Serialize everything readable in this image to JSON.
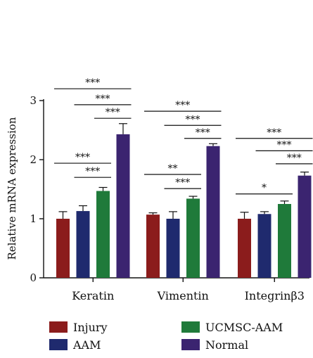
{
  "chart_data": {
    "type": "bar",
    "title": "",
    "xlabel": "",
    "ylabel": "Relative mRNA expression",
    "ylim": [
      0,
      3
    ],
    "yticks": [
      "0",
      "1",
      "2",
      "3"
    ],
    "categories": [
      "Keratin",
      "Vimentin",
      "Integrinβ3"
    ],
    "series": [
      {
        "name": "Injury",
        "color": "#8b1c1c",
        "values": [
          1.0,
          1.07,
          1.0
        ],
        "errors": [
          0.12,
          0.03,
          0.11
        ]
      },
      {
        "name": "AAM",
        "color": "#1f2a6e",
        "values": [
          1.13,
          1.0,
          1.08
        ],
        "errors": [
          0.09,
          0.12,
          0.04
        ]
      },
      {
        "name": "UCMSC-AAM",
        "color": "#1f7a3a",
        "values": [
          1.47,
          1.34,
          1.25
        ],
        "errors": [
          0.06,
          0.04,
          0.05
        ]
      },
      {
        "name": "Normal",
        "color": "#3b2470",
        "values": [
          2.43,
          2.23,
          1.73
        ],
        "errors": [
          0.18,
          0.04,
          0.06
        ]
      }
    ],
    "significance": [
      {
        "category": 0,
        "from": 0,
        "to": 3,
        "label": "***",
        "y": 3.2
      },
      {
        "category": 0,
        "from": 1,
        "to": 3,
        "label": "***",
        "y": 2.93
      },
      {
        "category": 0,
        "from": 2,
        "to": 3,
        "label": "***",
        "y": 2.7
      },
      {
        "category": 0,
        "from": 0,
        "to": 2,
        "label": "***",
        "y": 1.94
      },
      {
        "category": 0,
        "from": 1,
        "to": 2,
        "label": "***",
        "y": 1.7
      },
      {
        "category": 1,
        "from": 0,
        "to": 3,
        "label": "***",
        "y": 2.82
      },
      {
        "category": 1,
        "from": 1,
        "to": 3,
        "label": "***",
        "y": 2.58
      },
      {
        "category": 1,
        "from": 2,
        "to": 3,
        "label": "***",
        "y": 2.36
      },
      {
        "category": 1,
        "from": 0,
        "to": 2,
        "label": "**",
        "y": 1.75
      },
      {
        "category": 1,
        "from": 1,
        "to": 2,
        "label": "***",
        "y": 1.51
      },
      {
        "category": 2,
        "from": 0,
        "to": 3,
        "label": "***",
        "y": 2.36
      },
      {
        "category": 2,
        "from": 1,
        "to": 3,
        "label": "***",
        "y": 2.15
      },
      {
        "category": 2,
        "from": 2,
        "to": 3,
        "label": "***",
        "y": 1.93
      },
      {
        "category": 2,
        "from": 0,
        "to": 2,
        "label": "*",
        "y": 1.42
      }
    ],
    "legend_position": "bottom"
  }
}
